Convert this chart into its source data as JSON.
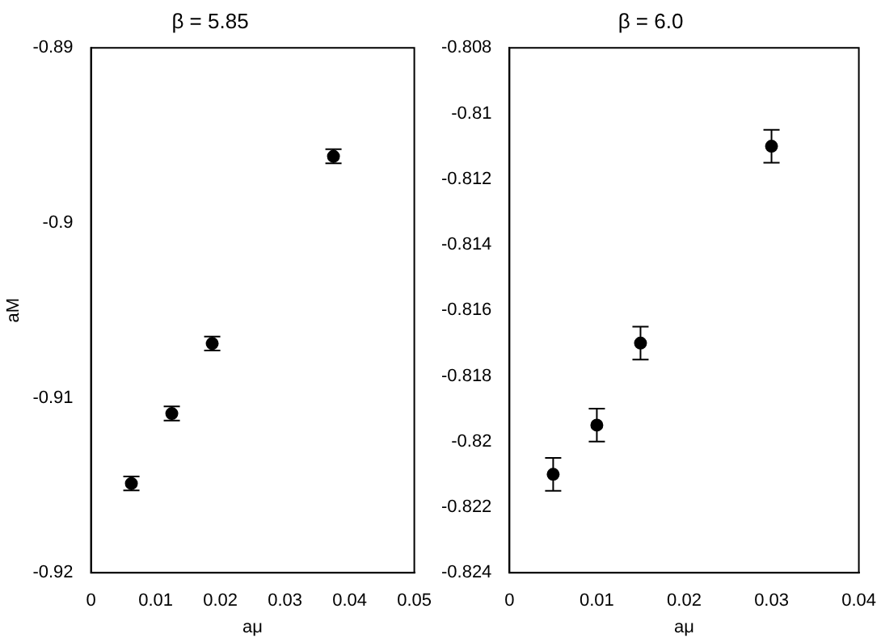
{
  "chart_data": [
    {
      "type": "scatter",
      "title": "β = 5.85",
      "xlabel": "aμ",
      "ylabel": "aM",
      "xlim": [
        0,
        0.05
      ],
      "xticks": [
        0,
        0.01,
        0.02,
        0.03,
        0.04,
        0.05
      ],
      "ylim": [
        -0.92,
        -0.89
      ],
      "yticks": [
        -0.92,
        -0.91,
        -0.9,
        -0.89
      ],
      "grid": false,
      "legend": false,
      "marker": "circle",
      "series": [
        {
          "color": "#000000",
          "x": [
            0.00625,
            0.0125,
            0.01875,
            0.0375
          ],
          "values": [
            -0.9149,
            -0.9109,
            -0.9069,
            -0.8962
          ],
          "errors": [
            0.0004,
            0.0004,
            0.0004,
            0.0004
          ]
        }
      ]
    },
    {
      "type": "scatter",
      "title": "β = 6.0",
      "xlabel": "aμ",
      "xlim": [
        0,
        0.04
      ],
      "xticks": [
        0,
        0.01,
        0.02,
        0.03,
        0.04
      ],
      "ylim": [
        -0.824,
        -0.808
      ],
      "yticks": [
        -0.824,
        -0.822,
        -0.82,
        -0.818,
        -0.816,
        -0.814,
        -0.812,
        -0.81,
        -0.808
      ],
      "grid": false,
      "legend": false,
      "marker": "circle",
      "series": [
        {
          "color": "#000000",
          "x": [
            0.005,
            0.01,
            0.015,
            0.03
          ],
          "values": [
            -0.821,
            -0.8195,
            -0.817,
            -0.811
          ],
          "errors": [
            0.0005,
            0.0005,
            0.0005,
            0.0005
          ]
        }
      ]
    }
  ]
}
